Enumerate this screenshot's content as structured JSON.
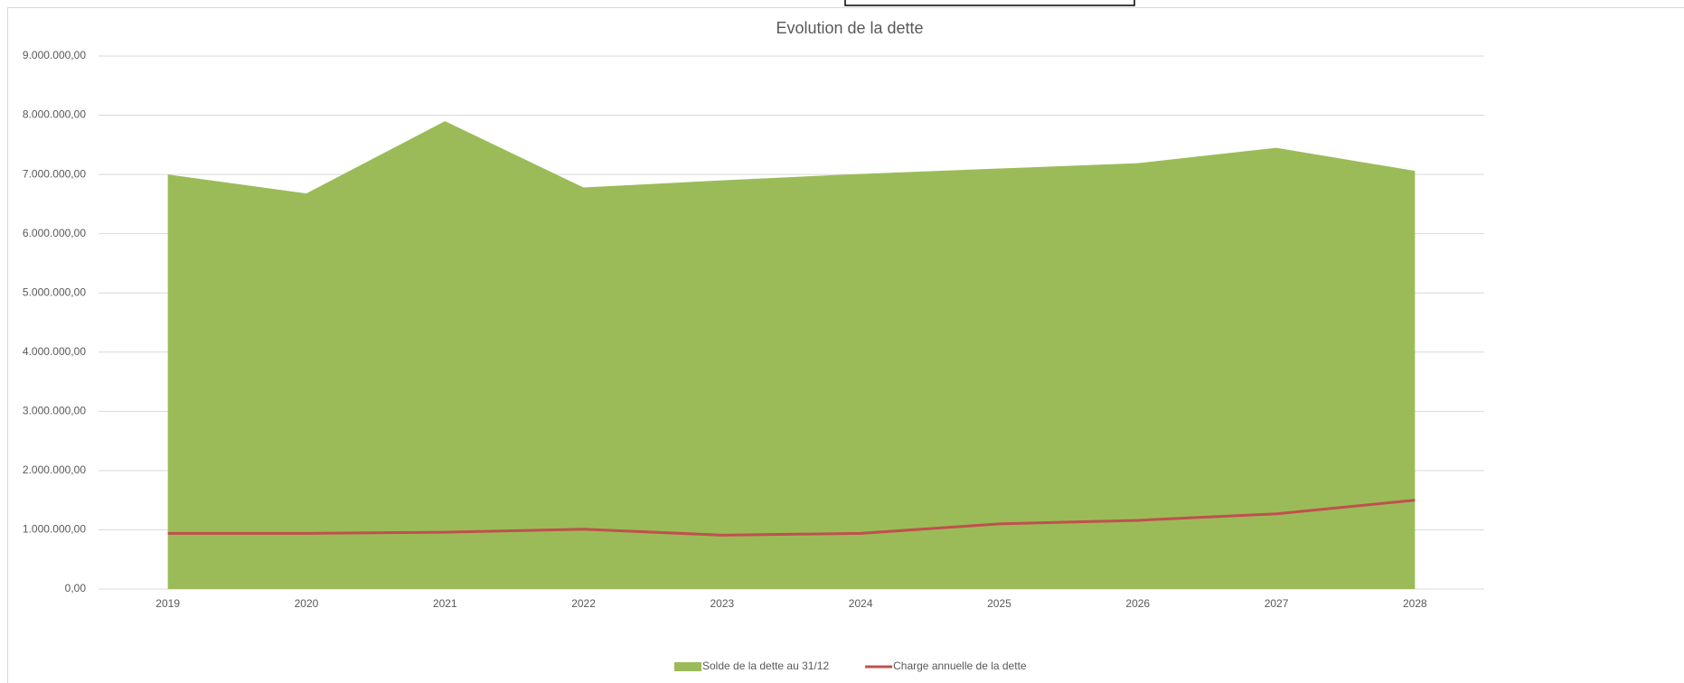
{
  "chart_data": {
    "type": "area-line",
    "title": "Evolution de la dette",
    "categories": [
      "2019",
      "2020",
      "2021",
      "2022",
      "2023",
      "2024",
      "2025",
      "2026",
      "2027",
      "2028"
    ],
    "series": [
      {
        "name": "Solde de la dette au 31/12",
        "type": "area",
        "color": "#9bbb59",
        "values": [
          7000000,
          6680000,
          7900000,
          6780000,
          6900000,
          7010000,
          7100000,
          7190000,
          7450000,
          7060000
        ]
      },
      {
        "name": "Charge annuelle de la dette",
        "type": "line",
        "color": "#c0504d",
        "values": [
          940000,
          940000,
          960000,
          1010000,
          910000,
          940000,
          1100000,
          1160000,
          1270000,
          1500000
        ]
      }
    ],
    "ylim": [
      0,
      9000000
    ],
    "yticks": [
      {
        "value": 0,
        "label": "0,00"
      },
      {
        "value": 1000000,
        "label": "1.000.000,00"
      },
      {
        "value": 2000000,
        "label": "2.000.000,00"
      },
      {
        "value": 3000000,
        "label": "3.000.000,00"
      },
      {
        "value": 4000000,
        "label": "4.000.000,00"
      },
      {
        "value": 5000000,
        "label": "5.000.000,00"
      },
      {
        "value": 6000000,
        "label": "6.000.000,00"
      },
      {
        "value": 7000000,
        "label": "7.000.000,00"
      },
      {
        "value": 8000000,
        "label": "8.000.000,00"
      },
      {
        "value": 9000000,
        "label": "9.000.000,00"
      }
    ],
    "grid": true,
    "legend": "bottom"
  }
}
